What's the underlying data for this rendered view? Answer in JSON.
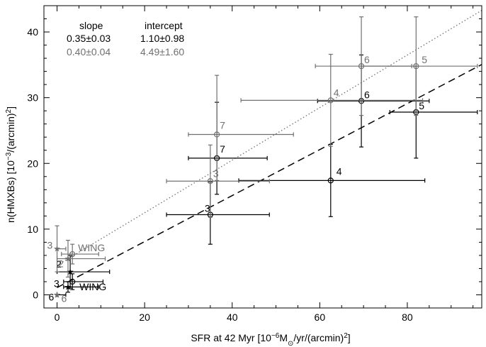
{
  "chart_data": {
    "type": "scatter",
    "xlabel": "SFR at 42 Myr [10",
    "xlabel_sup": "−6",
    "xlabel_mid": "M",
    "xlabel_sub": "⊙",
    "xlabel_end": "/yr/(arcmin)",
    "xlabel_sup2": "2",
    "xlabel_close": "]",
    "ylabel": "n(HMXBs) [10",
    "ylabel_sup": "−3",
    "ylabel_end": "/(arcmin)",
    "ylabel_sup2": "2",
    "ylabel_close": "]",
    "xlim": [
      -3,
      97
    ],
    "ylim": [
      -2,
      44
    ],
    "xticks": [
      0,
      20,
      40,
      60,
      80
    ],
    "yticks": [
      0,
      10,
      20,
      30,
      40
    ],
    "colors": {
      "black": "#000000",
      "gray": "#707070"
    },
    "legend": {
      "headers": [
        "slope",
        "intercept"
      ],
      "rows": [
        {
          "slope": "0.35±0.03",
          "intercept": "1.10±0.98",
          "color": "black"
        },
        {
          "slope": "0.40±0.04",
          "intercept": "4.49±1.60",
          "color": "gray"
        }
      ]
    },
    "fits": [
      {
        "color": "black",
        "style": "dashed",
        "slope": 0.35,
        "intercept": 1.1
      },
      {
        "color": "gray",
        "style": "dotted",
        "slope": 0.4,
        "intercept": 4.49
      }
    ],
    "series": [
      {
        "color": "black",
        "points": [
          {
            "x": 35,
            "y": 12.2,
            "xerr": [
              10,
              13.5
            ],
            "yerr": [
              4.5,
              5
            ],
            "label": "3",
            "marker": "circle"
          },
          {
            "x": 36.5,
            "y": 20.8,
            "xerr": [
              6.5,
              11.5
            ],
            "yerr": [
              5.5,
              8.5
            ],
            "label": "7",
            "marker": "circle"
          },
          {
            "x": 62.5,
            "y": 17.4,
            "xerr": [
              21,
              21.5
            ],
            "yerr": [
              5.5,
              5.5
            ],
            "label": "4",
            "marker": "circle"
          },
          {
            "x": 69.5,
            "y": 29.5,
            "xerr": [
              10,
              15.5
            ],
            "yerr": [
              7,
              7
            ],
            "label": "6",
            "marker": "circle"
          },
          {
            "x": 82,
            "y": 27.8,
            "xerr": [
              6,
              14
            ],
            "yerr": [
              7,
              7
            ],
            "label": "5",
            "marker": "circle"
          },
          {
            "x": 3,
            "y": 3.5,
            "xerr": [
              3,
              9
            ],
            "yerr": [
              2.5,
              2.5
            ],
            "label": "2",
            "marker": "star"
          },
          {
            "x": 3.5,
            "y": 2,
            "xerr": [
              2,
              7
            ],
            "yerr": [
              1.2,
              1.2
            ],
            "label": "WING",
            "marker": "circle"
          },
          {
            "x": 2.5,
            "y": 1.2,
            "xerr": [
              1,
              7
            ],
            "yerr": [
              0.8,
              0.8
            ],
            "label": "3",
            "marker": "star"
          },
          {
            "x": 0,
            "y": 0,
            "xerr": [
              0,
              2
            ],
            "yerr": [
              0,
              0
            ],
            "label": "6",
            "marker": "star"
          }
        ]
      },
      {
        "color": "gray",
        "points": [
          {
            "x": 35,
            "y": 17.3,
            "xerr": [
              10,
              13.5
            ],
            "yerr": [
              5.5,
              5.5
            ],
            "label": "3",
            "marker": "circle"
          },
          {
            "x": 36.5,
            "y": 24.4,
            "xerr": [
              6.5,
              17.5
            ],
            "yerr": [
              7,
              9
            ],
            "label": "7",
            "marker": "circle"
          },
          {
            "x": 62.5,
            "y": 29.6,
            "xerr": [
              20.5,
              21
            ],
            "yerr": [
              7,
              7
            ],
            "label": "4",
            "marker": "circle"
          },
          {
            "x": 69.5,
            "y": 34.8,
            "xerr": [
              10.5,
              11.5
            ],
            "yerr": [
              7.5,
              7.5
            ],
            "label": "6",
            "marker": "circle"
          },
          {
            "x": 82,
            "y": 34.8,
            "xerr": [
              12.5,
              14
            ],
            "yerr": [
              7.5,
              7.5
            ],
            "label": "5",
            "marker": "circle"
          },
          {
            "x": 0,
            "y": 7,
            "xerr": [
              0,
              2
            ],
            "yerr": [
              3.5,
              3.5
            ],
            "label": "3",
            "marker": "star"
          },
          {
            "x": 2.5,
            "y": 5.5,
            "xerr": [
              2.5,
              8.5
            ],
            "yerr": [
              2.8,
              2.8
            ],
            "label": "2",
            "marker": "star"
          },
          {
            "x": 3.5,
            "y": 6.2,
            "xerr": [
              2.5,
              6
            ],
            "yerr": [
              1.5,
              1.5
            ],
            "label": "WING",
            "marker": "circle"
          },
          {
            "x": 0,
            "y": 0,
            "xerr": [
              0,
              0
            ],
            "yerr": [
              0,
              0
            ],
            "label": "6",
            "marker": "star"
          }
        ]
      }
    ]
  }
}
